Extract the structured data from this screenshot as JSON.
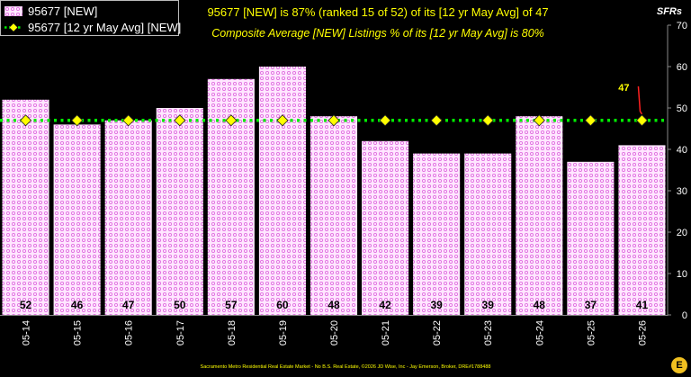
{
  "legend": {
    "bar_label": "95677 [NEW]",
    "avg_label": "95677 [12 yr May Avg] [NEW]"
  },
  "title": "95677 [NEW] is 87% (ranked 15 of 52)  of its [12 yr May Avg] of 47",
  "subtitle": "Composite Average [NEW] Listings % of its [12 yr May Avg] is 80%",
  "unit_label": "SFRs",
  "footer": "Sacramento Metro Residential Real Estate Market - No B.S. Real Estate, ©2026 JD Wise, Inc - Jay Emerson, Broker, DRE#1788488",
  "logo_text": "E",
  "colors": {
    "background": "#000000",
    "bar_fill": "#ffe6ff",
    "bar_pattern": "#e070e0",
    "avg_line": "#00ee00",
    "avg_marker": "#ffff00",
    "annotation": "#ffff00",
    "annotation_arrow": "#ff2020",
    "text": "#ffffff"
  },
  "chart_data": {
    "type": "bar",
    "categories": [
      "05-14",
      "05-15",
      "05-16",
      "05-17",
      "05-18",
      "05-19",
      "05-20",
      "05-21",
      "05-22",
      "05-23",
      "05-24",
      "05-25",
      "05-26"
    ],
    "series": [
      {
        "name": "95677 [NEW]",
        "type": "bar",
        "values": [
          52,
          46,
          47,
          50,
          57,
          60,
          48,
          42,
          39,
          39,
          48,
          37,
          41
        ]
      },
      {
        "name": "95677 [12 yr May Avg] [NEW]",
        "type": "line",
        "values": [
          47,
          47,
          47,
          47,
          47,
          47,
          47,
          47,
          47,
          47,
          47,
          47,
          47
        ]
      }
    ],
    "data_labels": [
      "52",
      "46",
      "47",
      "50",
      "57",
      "60",
      "48",
      "42",
      "39",
      "39",
      "48",
      "37",
      "41"
    ],
    "annotation": {
      "text": "47",
      "category": "05-26",
      "value": 47
    },
    "ylim": [
      0,
      70
    ],
    "yticks": [
      0,
      10,
      20,
      30,
      40,
      50,
      60,
      70
    ],
    "ylabel": "SFRs",
    "grid": false
  }
}
